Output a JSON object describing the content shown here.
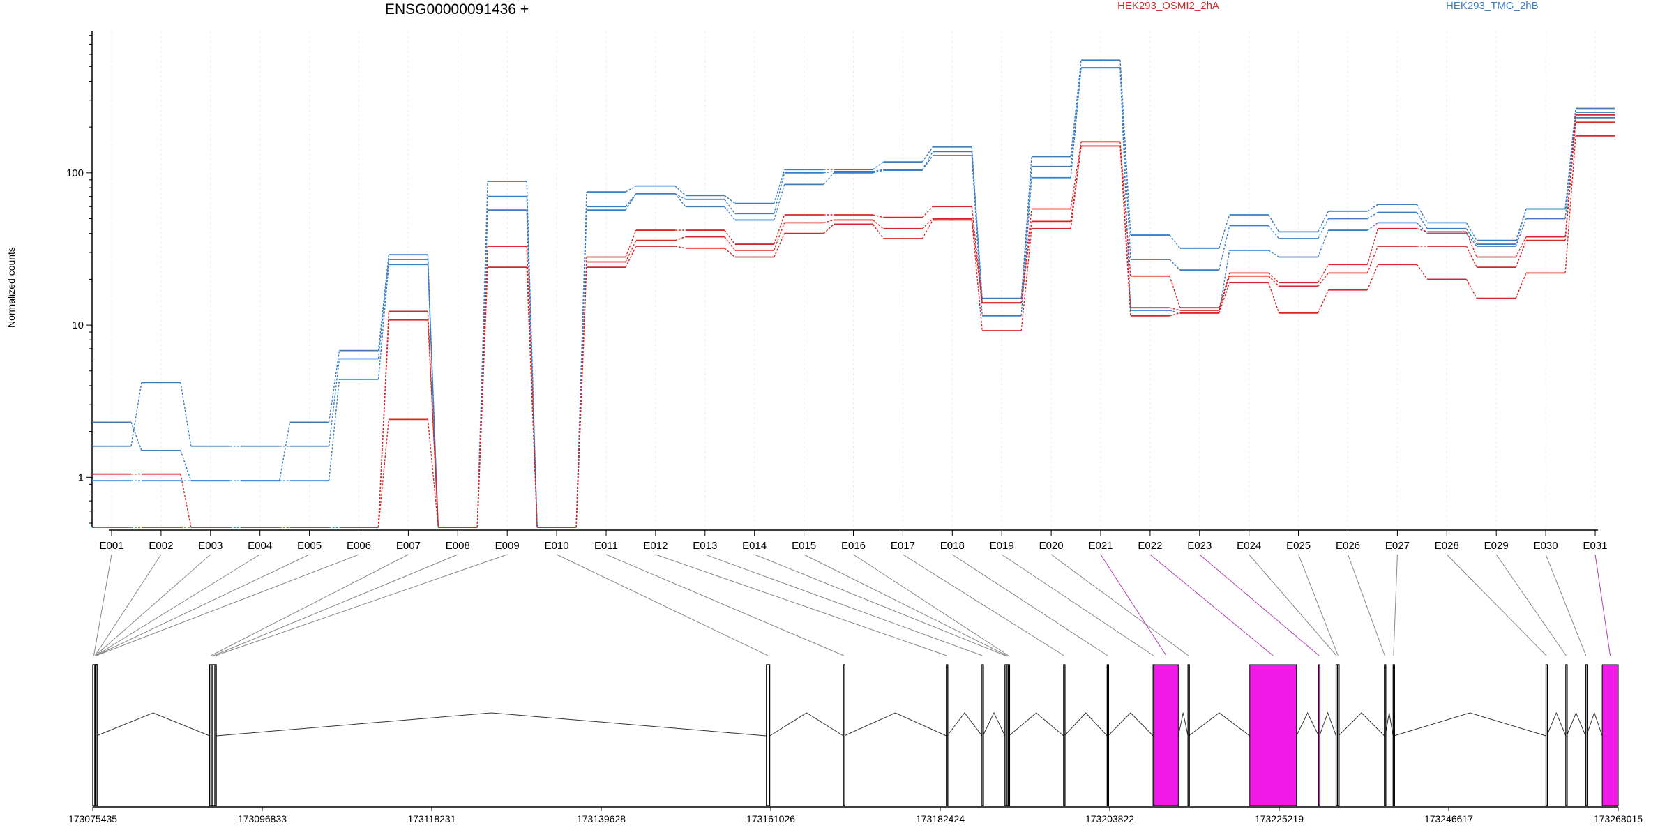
{
  "chart_data": {
    "type": "line",
    "title": "ENSG00000091436 +",
    "ylabel": "Normalized counts",
    "xlabel": "",
    "yscale": "log",
    "ylim": [
      0.45,
      850
    ],
    "yticks": [
      {
        "value": 1,
        "label": "1"
      },
      {
        "value": 10,
        "label": "10"
      },
      {
        "value": 100,
        "label": "100"
      }
    ],
    "categories": [
      "E001",
      "E002",
      "E003",
      "E004",
      "E005",
      "E006",
      "E007",
      "E008",
      "E009",
      "E010",
      "E011",
      "E012",
      "E013",
      "E014",
      "E015",
      "E016",
      "E017",
      "E018",
      "E019",
      "E020",
      "E021",
      "E022",
      "E023",
      "E024",
      "E025",
      "E026",
      "E027",
      "E028",
      "E029",
      "E030",
      "E031"
    ],
    "grid": "vertical-light",
    "legend": [
      {
        "name": "HEK293_OSMI2_2hA",
        "color": "#d62728"
      },
      {
        "name": "HEK293_TMG_2hB",
        "color": "#3a7dc0"
      }
    ],
    "series": [
      {
        "group": "HEK293_TMG_2hB",
        "color": "#3a7dc0",
        "values": [
          2.3,
          1.5,
          0.95,
          0.95,
          2.3,
          6.8,
          29,
          0.47,
          88,
          0.47,
          75,
          82,
          71,
          63,
          105,
          105,
          118,
          148,
          15,
          128,
          550,
          39,
          32,
          53,
          41,
          56,
          62,
          47,
          36,
          58,
          265
        ]
      },
      {
        "group": "HEK293_TMG_2hB",
        "color": "#3a7dc0",
        "values": [
          1.6,
          4.2,
          1.6,
          1.6,
          1.6,
          6.0,
          27,
          0.47,
          70,
          0.47,
          60,
          73,
          67,
          54,
          100,
          102,
          105,
          138,
          14,
          110,
          490,
          27,
          23,
          45,
          37,
          50,
          55,
          43,
          34,
          58,
          250
        ]
      },
      {
        "group": "HEK293_TMG_2hB",
        "color": "#3a7dc0",
        "values": [
          0.95,
          0.95,
          0.95,
          0.95,
          0.95,
          4.4,
          25,
          0.47,
          57,
          0.47,
          57,
          73,
          60,
          49,
          84,
          100,
          104,
          130,
          11.5,
          93,
          490,
          12.5,
          12,
          31,
          28,
          42,
          47,
          40,
          33,
          50,
          230
        ]
      },
      {
        "group": "HEK293_OSMI2_2hA",
        "color": "#d62728",
        "values": [
          1.05,
          1.05,
          0.47,
          0.47,
          0.47,
          0.47,
          12.3,
          0.47,
          33,
          0.47,
          28,
          42,
          42,
          34,
          53,
          53,
          51,
          60,
          14,
          58,
          160,
          21,
          13,
          22,
          19,
          25,
          43,
          41,
          28,
          38,
          240
        ]
      },
      {
        "group": "HEK293_OSMI2_2hA",
        "color": "#d62728",
        "values": [
          0.47,
          0.47,
          0.47,
          0.47,
          0.47,
          0.47,
          10.8,
          0.47,
          33,
          0.47,
          26,
          36,
          38,
          31,
          47,
          49,
          43,
          50,
          14,
          48,
          150,
          13,
          12.5,
          21,
          18,
          22,
          33,
          33,
          24,
          36,
          215
        ]
      },
      {
        "group": "HEK293_OSMI2_2hA",
        "color": "#d62728",
        "values": [
          0.47,
          0.47,
          0.47,
          0.47,
          0.47,
          0.47,
          2.4,
          0.47,
          24,
          0.47,
          24,
          33,
          32,
          28,
          40,
          46,
          37,
          49,
          9.2,
          43,
          150,
          11.5,
          12,
          19,
          12,
          17,
          25,
          20,
          15,
          22,
          175
        ]
      }
    ]
  },
  "gene_model": {
    "genomic_axis": {
      "ticks": [
        "173075435",
        "173096833",
        "173118231",
        "173139628",
        "173161026",
        "173182424",
        "173203822",
        "173225219",
        "173246617",
        "173268015"
      ],
      "tick_values": [
        173075435,
        173096833,
        173118231,
        173139628,
        173161026,
        173182424,
        173203822,
        173225219,
        173246617,
        173268015
      ]
    },
    "exon_color": "#f01be6",
    "highlighted_exons": [
      "E021",
      "E022",
      "E023",
      "E031"
    ],
    "exons": [
      {
        "id": "E001",
        "start": 173075435,
        "end": 173075700
      },
      {
        "id": "E002",
        "start": 173075700,
        "end": 173075740
      },
      {
        "id": "E003",
        "start": 173075740,
        "end": 173075780
      },
      {
        "id": "E004",
        "start": 173075780,
        "end": 173075820
      },
      {
        "id": "E005",
        "start": 173075820,
        "end": 173075860
      },
      {
        "id": "E006",
        "start": 173075860,
        "end": 173075900
      },
      {
        "id": "E007",
        "start": 173090200,
        "end": 173090500
      },
      {
        "id": "E008",
        "start": 173090500,
        "end": 173090850
      },
      {
        "id": "E009",
        "start": 173090850,
        "end": 173091000
      },
      {
        "id": "E010",
        "start": 173160480,
        "end": 173160900
      },
      {
        "id": "E011",
        "start": 173170200,
        "end": 173170300
      },
      {
        "id": "E012",
        "start": 173183200,
        "end": 173183300
      },
      {
        "id": "E013",
        "start": 173187700,
        "end": 173187800
      },
      {
        "id": "E014",
        "start": 173190600,
        "end": 173190700
      },
      {
        "id": "E015",
        "start": 173190800,
        "end": 173190900
      },
      {
        "id": "E016",
        "start": 173191000,
        "end": 173191100
      },
      {
        "id": "E017",
        "start": 173198000,
        "end": 173198100
      },
      {
        "id": "E018",
        "start": 173203500,
        "end": 173203600
      },
      {
        "id": "E019",
        "start": 173209300,
        "end": 173209400
      },
      {
        "id": "E020",
        "start": 173213700,
        "end": 173213800
      },
      {
        "id": "E021",
        "start": 173209420,
        "end": 173212480
      },
      {
        "id": "E022",
        "start": 173221500,
        "end": 173227400
      },
      {
        "id": "E023",
        "start": 173230200,
        "end": 173230300
      },
      {
        "id": "E024",
        "start": 173232400,
        "end": 173232500
      },
      {
        "id": "E025",
        "start": 173232600,
        "end": 173232700
      },
      {
        "id": "E026",
        "start": 173238500,
        "end": 173238600
      },
      {
        "id": "E027",
        "start": 173239600,
        "end": 173239700
      },
      {
        "id": "E028",
        "start": 173258900,
        "end": 173259000
      },
      {
        "id": "E029",
        "start": 173261400,
        "end": 173261500
      },
      {
        "id": "E030",
        "start": 173263900,
        "end": 173264000
      },
      {
        "id": "E031",
        "start": 173266000,
        "end": 173268015
      }
    ]
  }
}
